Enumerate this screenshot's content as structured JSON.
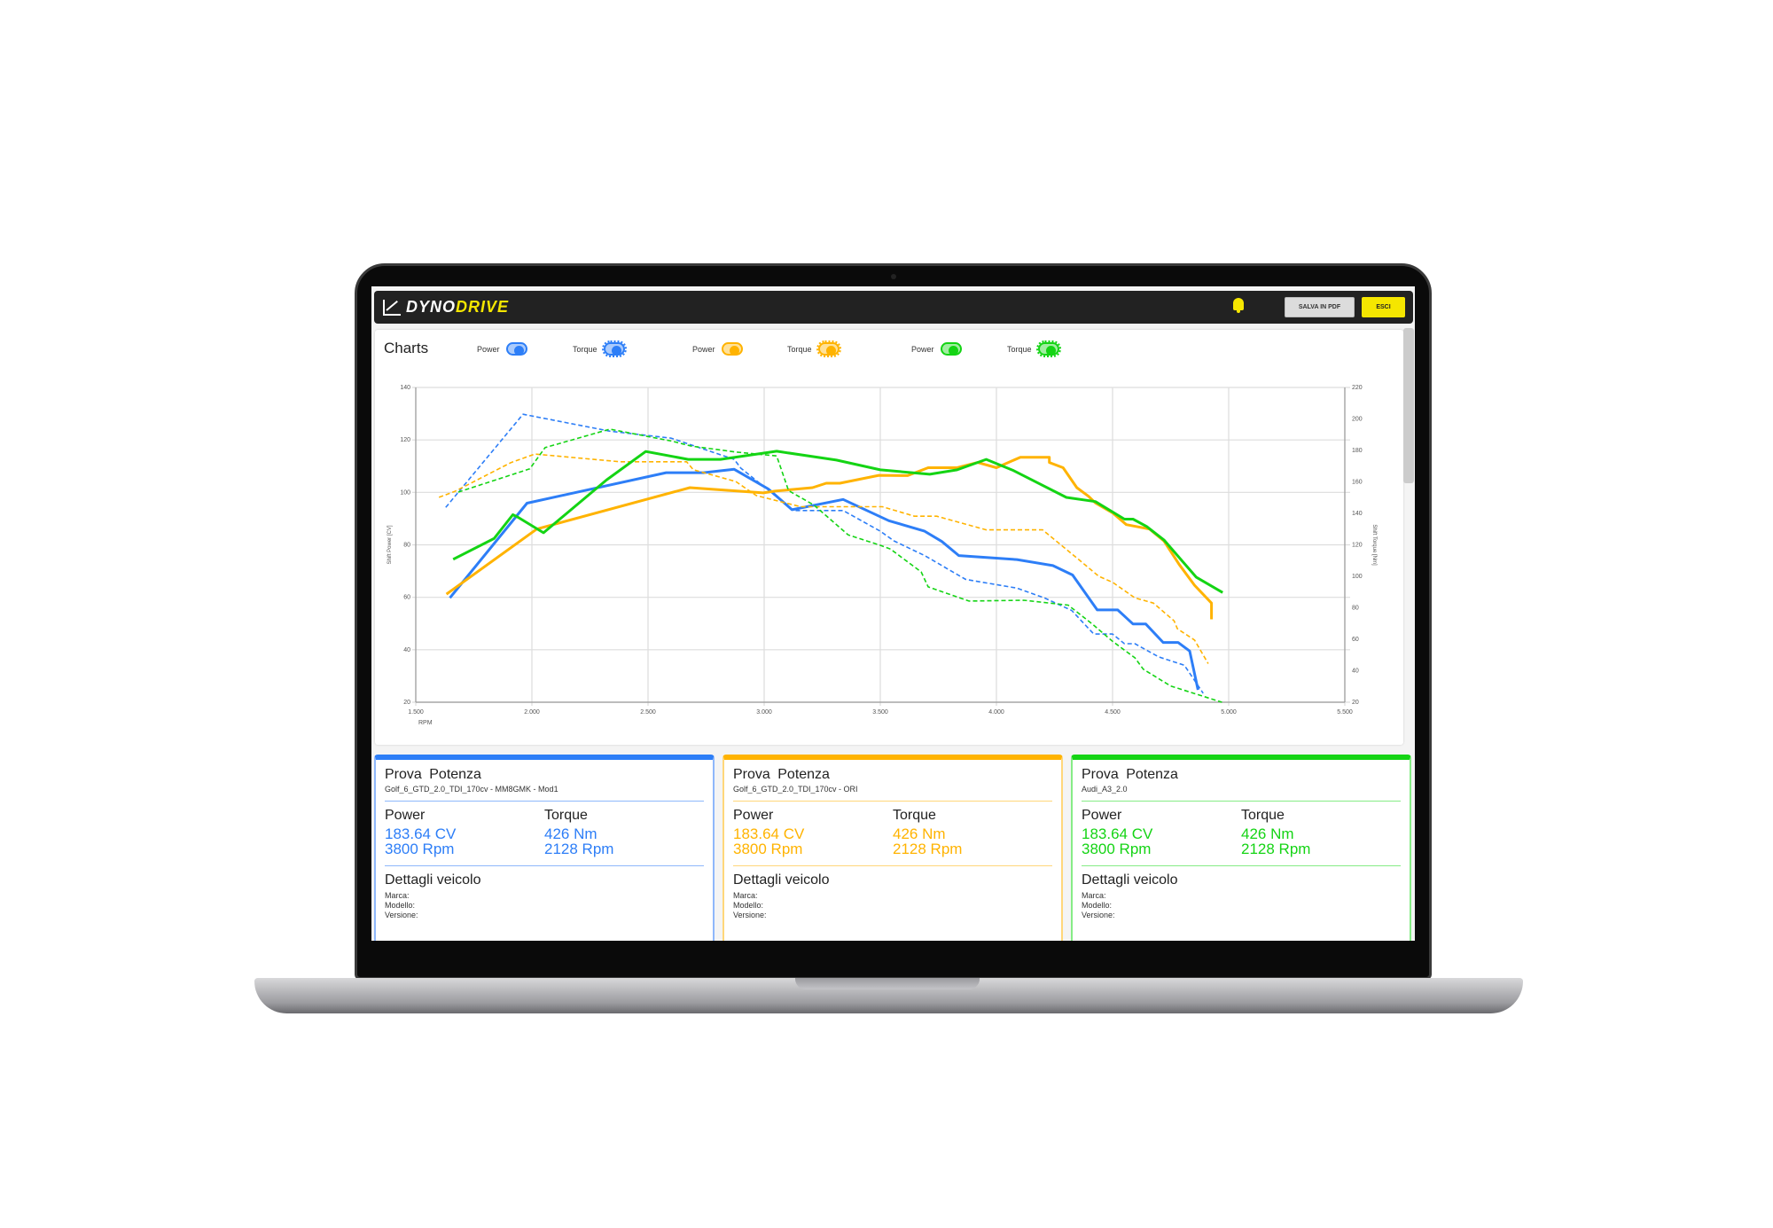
{
  "header": {
    "logo_left": "DYNO",
    "logo_right": "DRIVE",
    "notification_icon": "bell-icon",
    "save_pdf_label": "SALVA IN PDF",
    "exit_label": "ESCI"
  },
  "charts": {
    "title": "Charts",
    "toggles": [
      {
        "label": "Power",
        "color": "#2d7ef7",
        "on": true
      },
      {
        "label": "Torque",
        "color": "#2d7ef7",
        "on": true
      },
      {
        "label": "Power",
        "color": "#ffb300",
        "on": true
      },
      {
        "label": "Torque",
        "color": "#ffb300",
        "on": true
      },
      {
        "label": "Power",
        "color": "#14d414",
        "on": true
      },
      {
        "label": "Torque",
        "color": "#14d414",
        "on": true
      }
    ]
  },
  "chart_data": {
    "type": "line",
    "xlabel": "RPM",
    "ylabel": "Shift Power [CV]",
    "y2label": "Shift Torque [Nm]",
    "xlim": [
      1500,
      5500
    ],
    "ylim": [
      20,
      140
    ],
    "y2lim": [
      20,
      220
    ],
    "xticks": [
      "1.500",
      "2.000",
      "2.500",
      "3.000",
      "3.500",
      "4.000",
      "4.500",
      "5.000",
      "5.500"
    ],
    "yticks": [
      "20",
      "40",
      "60",
      "80",
      "100",
      "120",
      "140"
    ],
    "y2ticks": [
      "20",
      "40",
      "60",
      "80",
      "100",
      "120",
      "140",
      "160",
      "180",
      "200",
      "220"
    ],
    "grid": true,
    "series": [
      {
        "axis": "power",
        "color": "#2d7ef7",
        "dashed": false,
        "points": [
          [
            1647,
            59.8
          ],
          [
            1979,
            95.9
          ],
          [
            2578,
            107.5
          ],
          [
            2739,
            107.5
          ],
          [
            2871,
            108.8
          ],
          [
            3018,
            101.3
          ],
          [
            3120,
            93.4
          ],
          [
            3340,
            97.3
          ],
          [
            3537,
            89.2
          ],
          [
            3691,
            85.2
          ],
          [
            3765,
            81.3
          ],
          [
            3838,
            75.9
          ],
          [
            4088,
            74.4
          ],
          [
            4243,
            72.1
          ],
          [
            4328,
            68.5
          ],
          [
            4434,
            55.2
          ],
          [
            4522,
            55.2
          ],
          [
            4588,
            49.8
          ],
          [
            4643,
            49.8
          ],
          [
            4718,
            42.8
          ],
          [
            4782,
            42.8
          ],
          [
            4832,
            39.5
          ],
          [
            4868,
            24.7
          ]
        ]
      },
      {
        "axis": "torque",
        "color": "#2d7ef7",
        "dashed": true,
        "points": [
          [
            1629,
            143.8
          ],
          [
            1962,
            203
          ],
          [
            2336,
            192.2
          ],
          [
            2600,
            187.8
          ],
          [
            2871,
            174.3
          ],
          [
            2900,
            168.7
          ],
          [
            3127,
            141.8
          ],
          [
            3340,
            141.8
          ],
          [
            3500,
            128.7
          ],
          [
            3559,
            122.5
          ],
          [
            3691,
            113.2
          ],
          [
            3868,
            98
          ],
          [
            4088,
            92.5
          ],
          [
            4206,
            86.3
          ],
          [
            4324,
            78.3
          ],
          [
            4419,
            63.3
          ],
          [
            4500,
            63.3
          ],
          [
            4551,
            57.2
          ],
          [
            4596,
            57.2
          ],
          [
            4699,
            48.8
          ],
          [
            4809,
            43.5
          ],
          [
            4890,
            25.7
          ]
        ]
      },
      {
        "axis": "power",
        "color": "#ffb300",
        "dashed": false,
        "points": [
          [
            1632,
            61.2
          ],
          [
            2021,
            86
          ],
          [
            2680,
            101.8
          ],
          [
            2996,
            99.8
          ],
          [
            3047,
            100.5
          ],
          [
            3208,
            101.8
          ],
          [
            3267,
            103.5
          ],
          [
            3326,
            103.5
          ],
          [
            3494,
            106.5
          ],
          [
            3618,
            106.4
          ],
          [
            3706,
            109.4
          ],
          [
            3831,
            109.4
          ],
          [
            3919,
            111.4
          ],
          [
            4000,
            109.4
          ],
          [
            4103,
            113.4
          ],
          [
            4228,
            113.4
          ],
          [
            4228,
            111.4
          ],
          [
            4287,
            109.4
          ],
          [
            4346,
            101.8
          ],
          [
            4397,
            98.5
          ],
          [
            4426,
            96
          ],
          [
            4500,
            92.2
          ],
          [
            4559,
            87.7
          ],
          [
            4659,
            86
          ],
          [
            4721,
            81.5
          ],
          [
            4787,
            72.5
          ],
          [
            4853,
            64.6
          ],
          [
            4926,
            57.8
          ],
          [
            4926,
            51.6
          ]
        ]
      },
      {
        "axis": "torque",
        "color": "#ffb300",
        "dashed": true,
        "points": [
          [
            1600,
            150.2
          ],
          [
            1669,
            154
          ],
          [
            1910,
            172.3
          ],
          [
            2013,
            177.7
          ],
          [
            2380,
            172.8
          ],
          [
            2666,
            172.8
          ],
          [
            2695,
            167.7
          ],
          [
            2878,
            160.2
          ],
          [
            2966,
            151.3
          ],
          [
            3157,
            144.2
          ],
          [
            3509,
            144.2
          ],
          [
            3647,
            138.2
          ],
          [
            3743,
            138.2
          ],
          [
            3956,
            129.5
          ],
          [
            4199,
            129.5
          ],
          [
            4353,
            110.8
          ],
          [
            4441,
            100
          ],
          [
            4500,
            96.2
          ],
          [
            4596,
            86.3
          ],
          [
            4676,
            83
          ],
          [
            4765,
            71.7
          ],
          [
            4779,
            66.7
          ],
          [
            4853,
            59.5
          ],
          [
            4912,
            44.5
          ]
        ]
      },
      {
        "axis": "power",
        "color": "#14d414",
        "dashed": false,
        "points": [
          [
            1661,
            74.5
          ],
          [
            1837,
            82.4
          ],
          [
            1918,
            91.5
          ],
          [
            1940,
            90.5
          ],
          [
            2050,
            84.6
          ],
          [
            2321,
            104.7
          ],
          [
            2490,
            115.6
          ],
          [
            2673,
            112.6
          ],
          [
            2812,
            112.6
          ],
          [
            3054,
            115.7
          ],
          [
            3311,
            112.3
          ],
          [
            3500,
            108.6
          ],
          [
            3713,
            106.9
          ],
          [
            3831,
            108.6
          ],
          [
            3956,
            112.6
          ],
          [
            4074,
            108.3
          ],
          [
            4301,
            98.1
          ],
          [
            4426,
            96.5
          ],
          [
            4551,
            89.8
          ],
          [
            4588,
            89.8
          ],
          [
            4647,
            87
          ],
          [
            4721,
            81.9
          ],
          [
            4860,
            67.7
          ],
          [
            4974,
            61.8
          ]
        ]
      },
      {
        "axis": "torque",
        "color": "#14d414",
        "dashed": true,
        "points": [
          [
            1683,
            153.5
          ],
          [
            1991,
            168.3
          ],
          [
            2057,
            181.8
          ],
          [
            2336,
            193.5
          ],
          [
            2600,
            186
          ],
          [
            2688,
            182.7
          ],
          [
            2878,
            179
          ],
          [
            3054,
            176.5
          ],
          [
            3105,
            154.5
          ],
          [
            3215,
            145.2
          ],
          [
            3362,
            126.3
          ],
          [
            3500,
            119.7
          ],
          [
            3544,
            117.3
          ],
          [
            3676,
            102.8
          ],
          [
            3706,
            93.3
          ],
          [
            3882,
            84.3
          ],
          [
            4118,
            84.8
          ],
          [
            4309,
            81.7
          ],
          [
            4412,
            69.8
          ],
          [
            4500,
            58.7
          ],
          [
            4596,
            48.2
          ],
          [
            4632,
            41
          ],
          [
            4750,
            30.3
          ],
          [
            4971,
            20
          ]
        ]
      }
    ]
  },
  "cards": [
    {
      "color": "#2d7ef7",
      "light": "#8fb8fb",
      "title": "Prova  Potenza",
      "subtitle": "Golf_6_GTD_2.0_TDI_170cv - MM8GMK - Mod1",
      "power_label": "Power",
      "power_value": "183.64 CV",
      "power_rpm": "3800 Rpm",
      "torque_label": "Torque",
      "torque_value": "426 Nm",
      "torque_rpm": "2128 Rpm",
      "details_title": "Dettagli veicolo",
      "marca": "Marca:",
      "modello": "Modello:",
      "versione": "Versione:"
    },
    {
      "color": "#ffb300",
      "light": "#ffd77a",
      "title": "Prova  Potenza",
      "subtitle": "Golf_6_GTD_2.0_TDI_170cv - ORI",
      "power_label": "Power",
      "power_value": "183.64 CV",
      "power_rpm": "3800 Rpm",
      "torque_label": "Torque",
      "torque_value": "426 Nm",
      "torque_rpm": "2128 Rpm",
      "details_title": "Dettagli veicolo",
      "marca": "Marca:",
      "modello": "Modello:",
      "versione": "Versione:"
    },
    {
      "color": "#14d414",
      "light": "#86ec86",
      "title": "Prova  Potenza",
      "subtitle": "Audi_A3_2.0",
      "power_label": "Power",
      "power_value": "183.64 CV",
      "power_rpm": "3800 Rpm",
      "torque_label": "Torque",
      "torque_value": "426 Nm",
      "torque_rpm": "2128 Rpm",
      "details_title": "Dettagli veicolo",
      "marca": "Marca:",
      "modello": "Modello:",
      "versione": "Versione:"
    }
  ]
}
